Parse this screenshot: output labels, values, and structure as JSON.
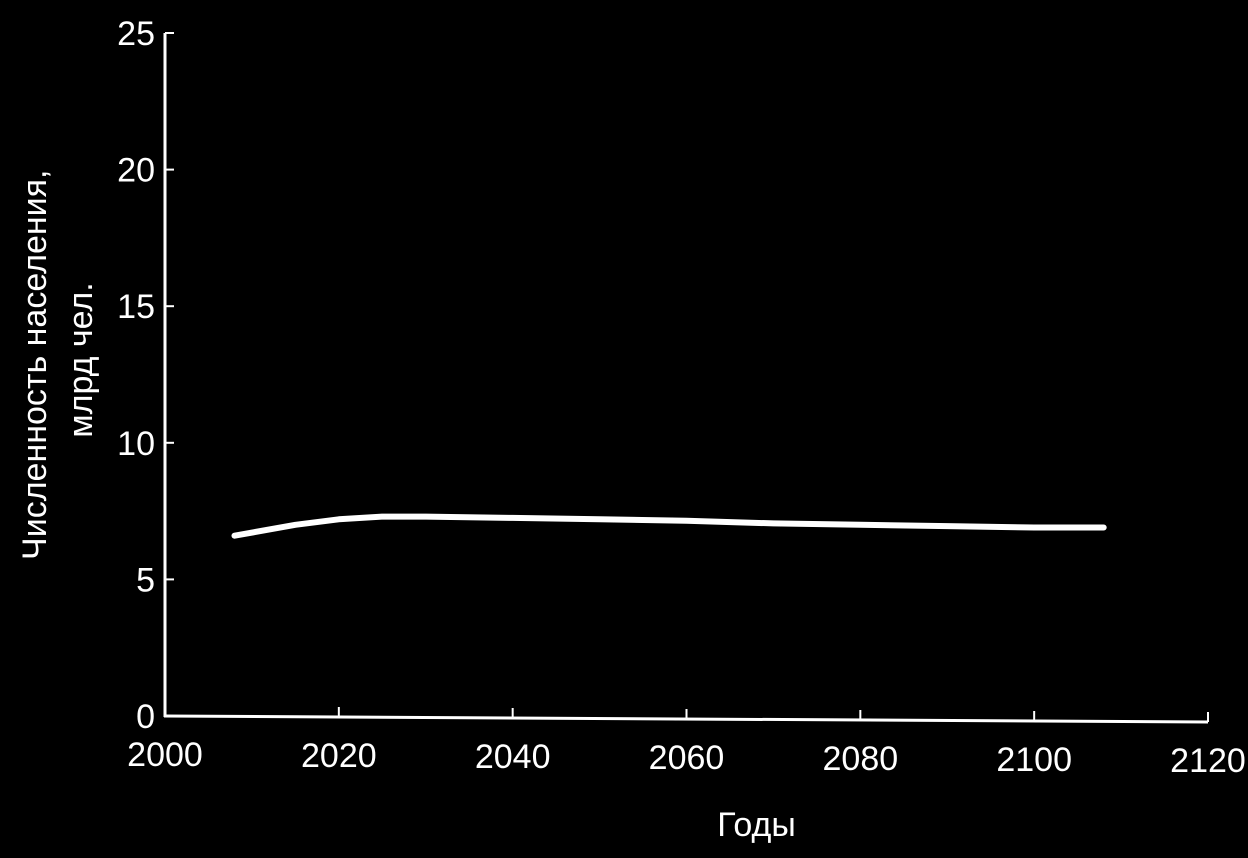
{
  "chart_data": {
    "type": "line",
    "xlabel": "Годы",
    "ylabel_line1": "Численность населения,",
    "ylabel_line2": "млрд чел.",
    "xlim": [
      2000,
      2120
    ],
    "ylim": [
      0,
      25
    ],
    "xticks": [
      2000,
      2020,
      2040,
      2060,
      2080,
      2100,
      2120
    ],
    "yticks": [
      0,
      5,
      10,
      15,
      20,
      25
    ],
    "grid": false,
    "series": [
      {
        "x": [
          2008,
          2015,
          2020,
          2025,
          2030,
          2040,
          2050,
          2060,
          2070,
          2080,
          2090,
          2100,
          2108
        ],
        "y": [
          6.6,
          7.0,
          7.2,
          7.3,
          7.3,
          7.25,
          7.2,
          7.15,
          7.05,
          7.0,
          6.95,
          6.9,
          6.9
        ]
      }
    ],
    "colors": {
      "background": "#000000",
      "foreground": "#ffffff"
    }
  }
}
